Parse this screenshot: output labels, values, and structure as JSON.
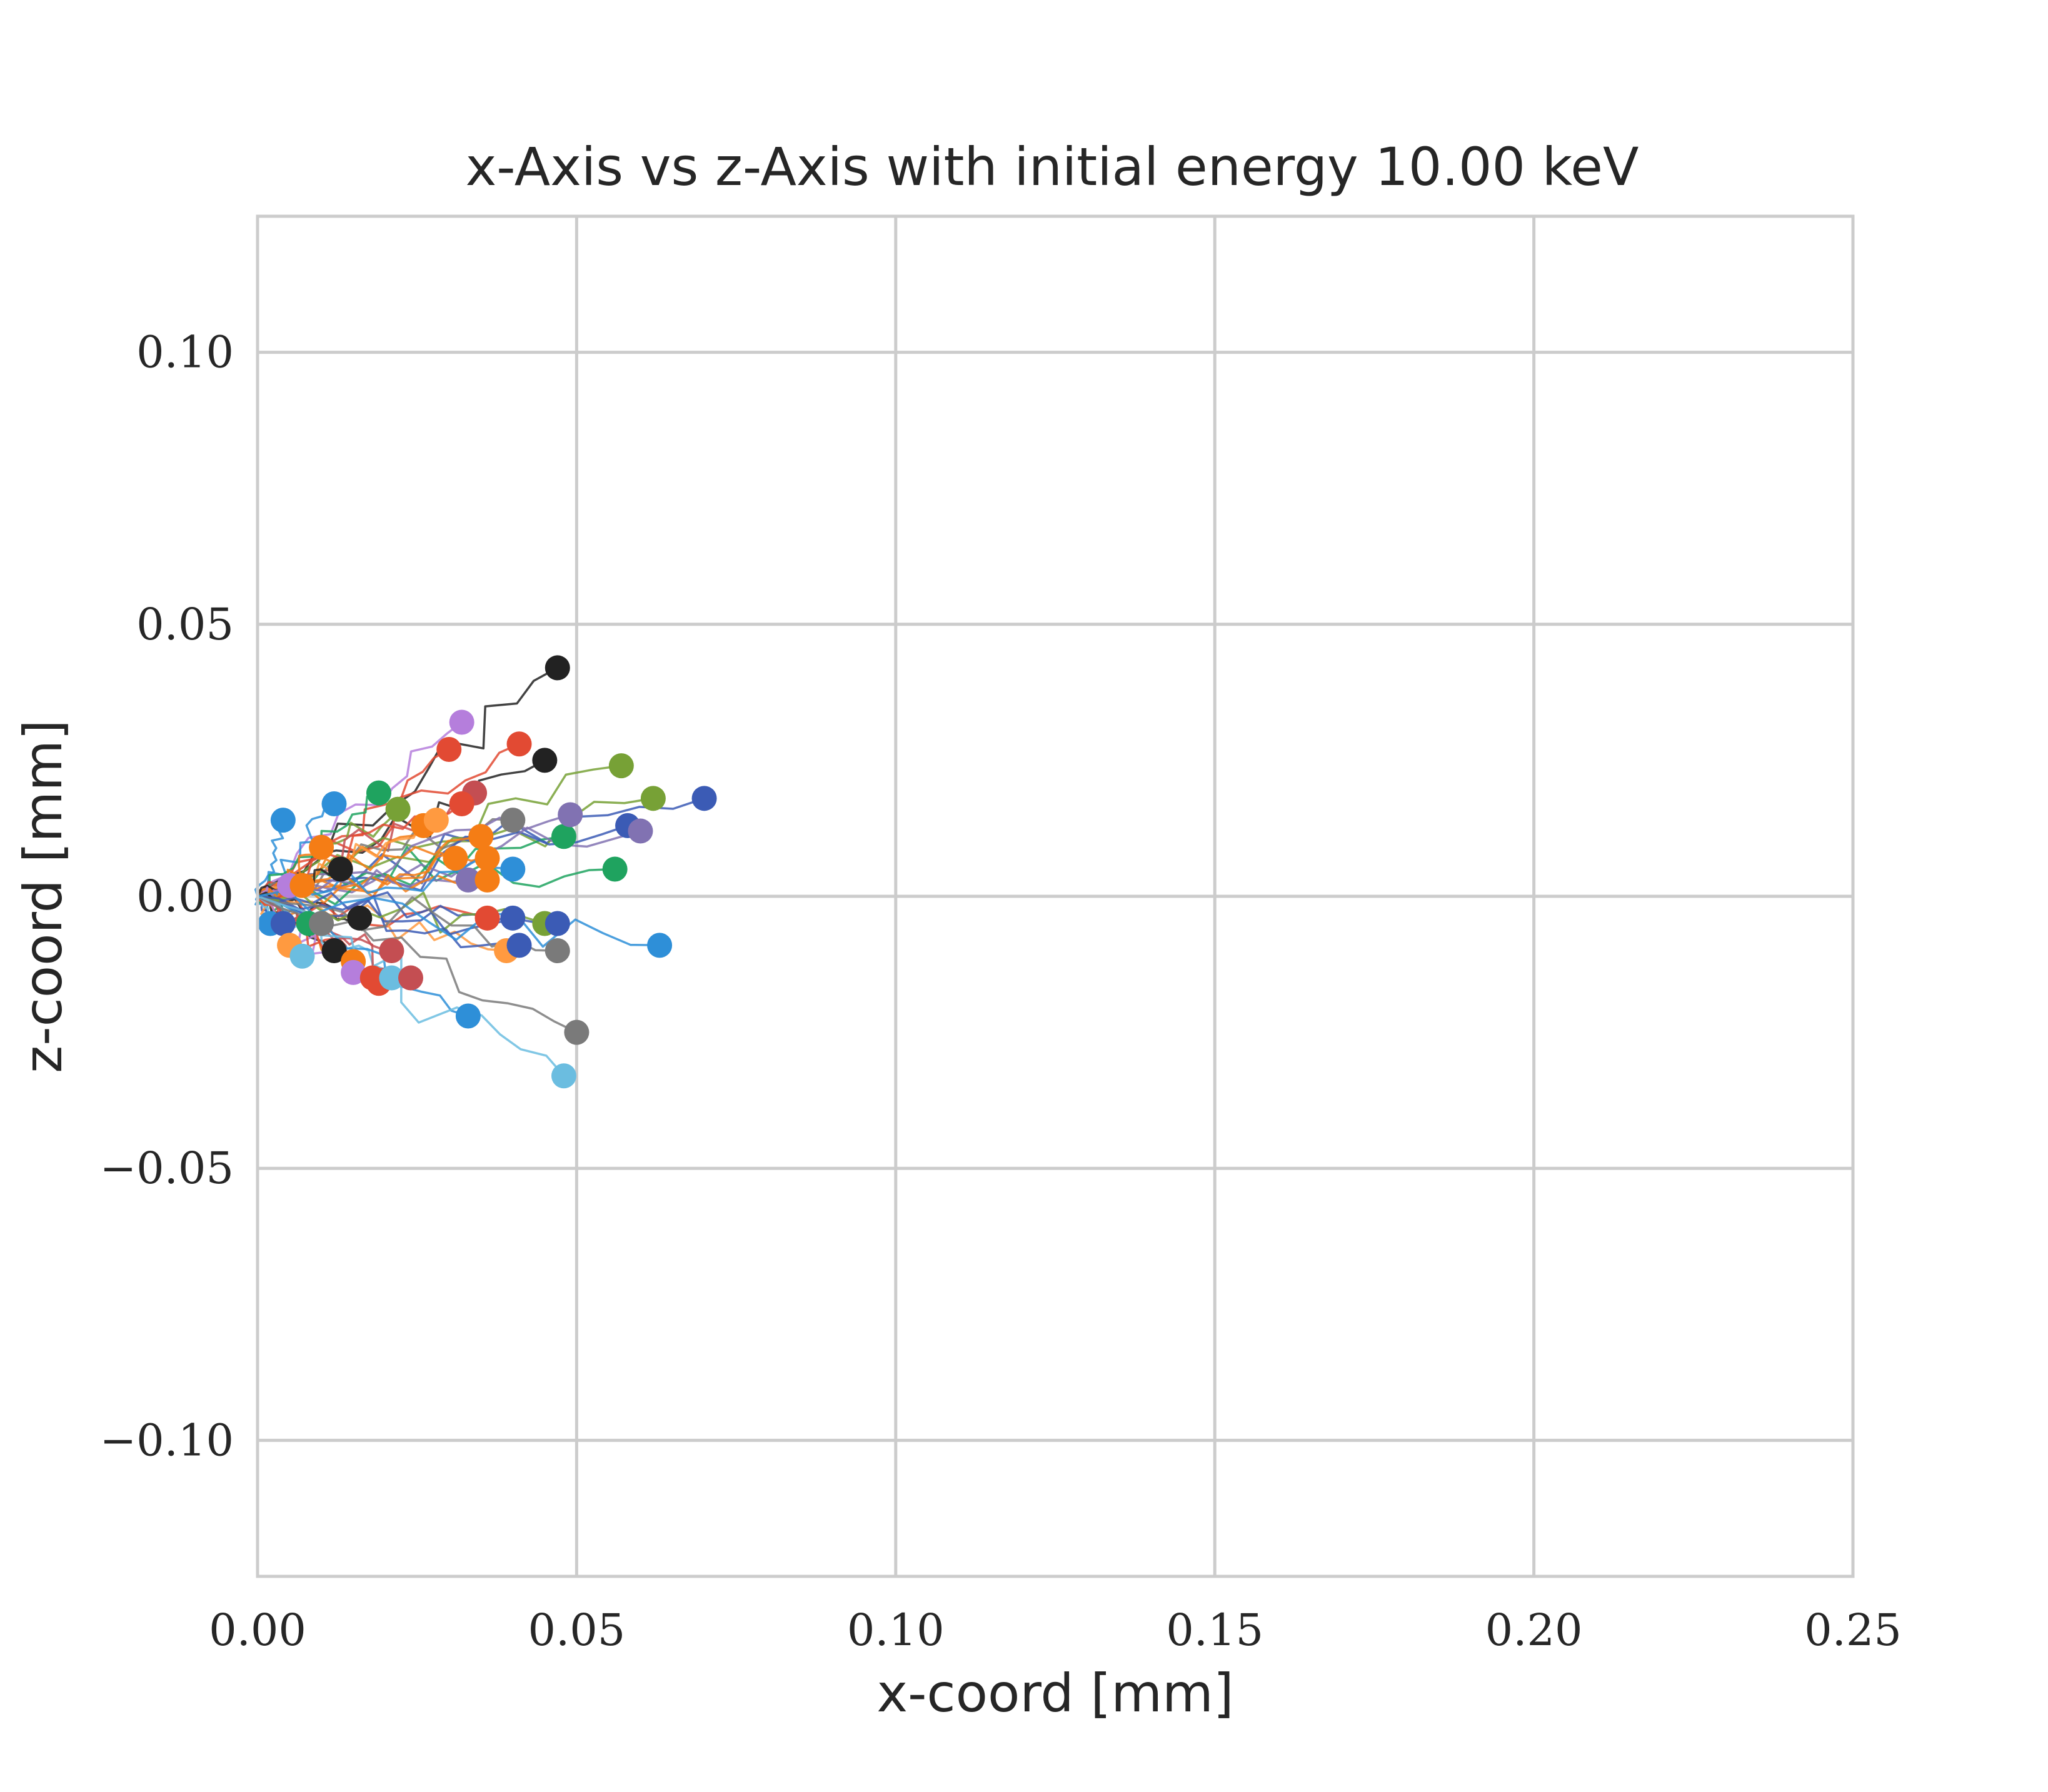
{
  "chart_data": {
    "type": "line",
    "title": "x-Axis vs z-Axis with initial energy 10.00 keV",
    "xlabel": "x-coord [mm]",
    "ylabel": "z-coord [mm]",
    "xlim": [
      0.0,
      0.25
    ],
    "ylim": [
      -0.125,
      0.125
    ],
    "xticks": [
      0.0,
      0.05,
      0.1,
      0.15,
      0.2,
      0.25
    ],
    "yticks": [
      -0.1,
      -0.05,
      0.0,
      0.05,
      0.1
    ],
    "xtick_labels": [
      "0.00",
      "0.05",
      "0.10",
      "0.15",
      "0.20",
      "0.25"
    ],
    "ytick_labels": [
      "−0.10",
      "−0.05",
      "0.00",
      "0.05",
      "0.10"
    ],
    "grid": true,
    "legend": "none",
    "start_point": [
      0.0,
      0.0
    ],
    "trajectory_endpoints": [
      {
        "x": 0.047,
        "z": 0.042,
        "color": "#222222"
      },
      {
        "x": 0.045,
        "z": 0.025,
        "color": "#222222"
      },
      {
        "x": 0.032,
        "z": 0.032,
        "color": "#b57edc"
      },
      {
        "x": 0.03,
        "z": 0.027,
        "color": "#e24a33"
      },
      {
        "x": 0.041,
        "z": 0.028,
        "color": "#e24a33"
      },
      {
        "x": 0.057,
        "z": 0.024,
        "color": "#77a136"
      },
      {
        "x": 0.07,
        "z": 0.018,
        "color": "#3b5bb5"
      },
      {
        "x": 0.062,
        "z": 0.018,
        "color": "#77a136"
      },
      {
        "x": 0.004,
        "z": 0.014,
        "color": "#2e8fd8"
      },
      {
        "x": 0.012,
        "z": 0.017,
        "color": "#2e8fd8"
      },
      {
        "x": 0.019,
        "z": 0.019,
        "color": "#1fa35f"
      },
      {
        "x": 0.022,
        "z": 0.016,
        "color": "#77a136"
      },
      {
        "x": 0.034,
        "z": 0.019,
        "color": "#c44e52"
      },
      {
        "x": 0.032,
        "z": 0.017,
        "color": "#e24a33"
      },
      {
        "x": 0.04,
        "z": 0.014,
        "color": "#7a7a7a"
      },
      {
        "x": 0.048,
        "z": 0.011,
        "color": "#1fa35f"
      },
      {
        "x": 0.049,
        "z": 0.015,
        "color": "#8172b2"
      },
      {
        "x": 0.058,
        "z": 0.013,
        "color": "#3b5bb5"
      },
      {
        "x": 0.06,
        "z": 0.012,
        "color": "#8172b2"
      },
      {
        "x": 0.056,
        "z": 0.005,
        "color": "#1fa35f"
      },
      {
        "x": 0.01,
        "z": 0.009,
        "color": "#f57d15"
      },
      {
        "x": 0.026,
        "z": 0.013,
        "color": "#f57d15"
      },
      {
        "x": 0.028,
        "z": 0.014,
        "color": "#ff9a40"
      },
      {
        "x": 0.035,
        "z": 0.011,
        "color": "#f57d15"
      },
      {
        "x": 0.036,
        "z": 0.007,
        "color": "#f57d15"
      },
      {
        "x": 0.031,
        "z": 0.007,
        "color": "#f57d15"
      },
      {
        "x": 0.033,
        "z": 0.003,
        "color": "#8172b2"
      },
      {
        "x": 0.036,
        "z": 0.003,
        "color": "#f57d15"
      },
      {
        "x": 0.04,
        "z": 0.005,
        "color": "#2e8fd8"
      },
      {
        "x": 0.013,
        "z": 0.005,
        "color": "#222222"
      },
      {
        "x": 0.005,
        "z": 0.002,
        "color": "#b57edc"
      },
      {
        "x": 0.007,
        "z": 0.002,
        "color": "#f57d15"
      },
      {
        "x": 0.002,
        "z": -0.005,
        "color": "#2e8fd8"
      },
      {
        "x": 0.004,
        "z": -0.005,
        "color": "#3b5bb5"
      },
      {
        "x": 0.008,
        "z": -0.005,
        "color": "#1fa35f"
      },
      {
        "x": 0.01,
        "z": -0.005,
        "color": "#7a7a7a"
      },
      {
        "x": 0.005,
        "z": -0.009,
        "color": "#ff9a40"
      },
      {
        "x": 0.007,
        "z": -0.011,
        "color": "#6bbde0"
      },
      {
        "x": 0.012,
        "z": -0.01,
        "color": "#222222"
      },
      {
        "x": 0.016,
        "z": -0.004,
        "color": "#222222"
      },
      {
        "x": 0.015,
        "z": -0.012,
        "color": "#f57d15"
      },
      {
        "x": 0.015,
        "z": -0.014,
        "color": "#b57edc"
      },
      {
        "x": 0.018,
        "z": -0.015,
        "color": "#e24a33"
      },
      {
        "x": 0.019,
        "z": -0.016,
        "color": "#e24a33"
      },
      {
        "x": 0.021,
        "z": -0.01,
        "color": "#c44e52"
      },
      {
        "x": 0.021,
        "z": -0.015,
        "color": "#6bbde0"
      },
      {
        "x": 0.024,
        "z": -0.015,
        "color": "#c44e52"
      },
      {
        "x": 0.033,
        "z": -0.022,
        "color": "#2e8fd8"
      },
      {
        "x": 0.036,
        "z": -0.004,
        "color": "#e24a33"
      },
      {
        "x": 0.039,
        "z": -0.01,
        "color": "#ff9a40"
      },
      {
        "x": 0.04,
        "z": -0.004,
        "color": "#3b5bb5"
      },
      {
        "x": 0.041,
        "z": -0.009,
        "color": "#3b5bb5"
      },
      {
        "x": 0.045,
        "z": -0.005,
        "color": "#77a136"
      },
      {
        "x": 0.047,
        "z": -0.005,
        "color": "#3b5bb5"
      },
      {
        "x": 0.047,
        "z": -0.01,
        "color": "#7a7a7a"
      },
      {
        "x": 0.05,
        "z": -0.025,
        "color": "#7a7a7a"
      },
      {
        "x": 0.048,
        "z": -0.033,
        "color": "#6bbde0"
      },
      {
        "x": 0.063,
        "z": -0.009,
        "color": "#2e8fd8"
      }
    ]
  }
}
